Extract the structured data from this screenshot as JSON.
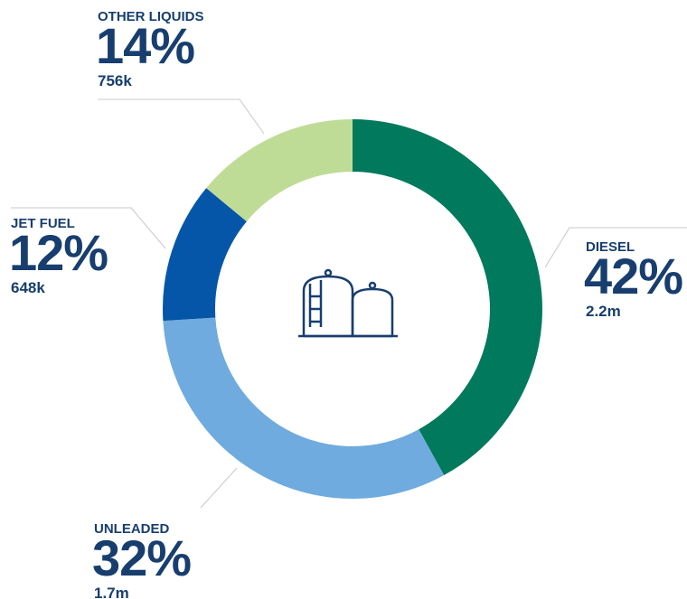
{
  "chart_data": {
    "type": "pie",
    "donut": true,
    "categories": [
      "DIESEL",
      "UNLEADED",
      "JET FUEL",
      "OTHER LIQUIDS"
    ],
    "values": [
      42,
      32,
      12,
      14
    ],
    "value_labels": [
      "42%",
      "32%",
      "12%",
      "14%"
    ],
    "sub_labels": [
      "2.2m",
      "1.7m",
      "648k",
      "756k"
    ],
    "colors": [
      "#00795c",
      "#6fabde",
      "#0556a8",
      "#bfdc97"
    ]
  }
}
